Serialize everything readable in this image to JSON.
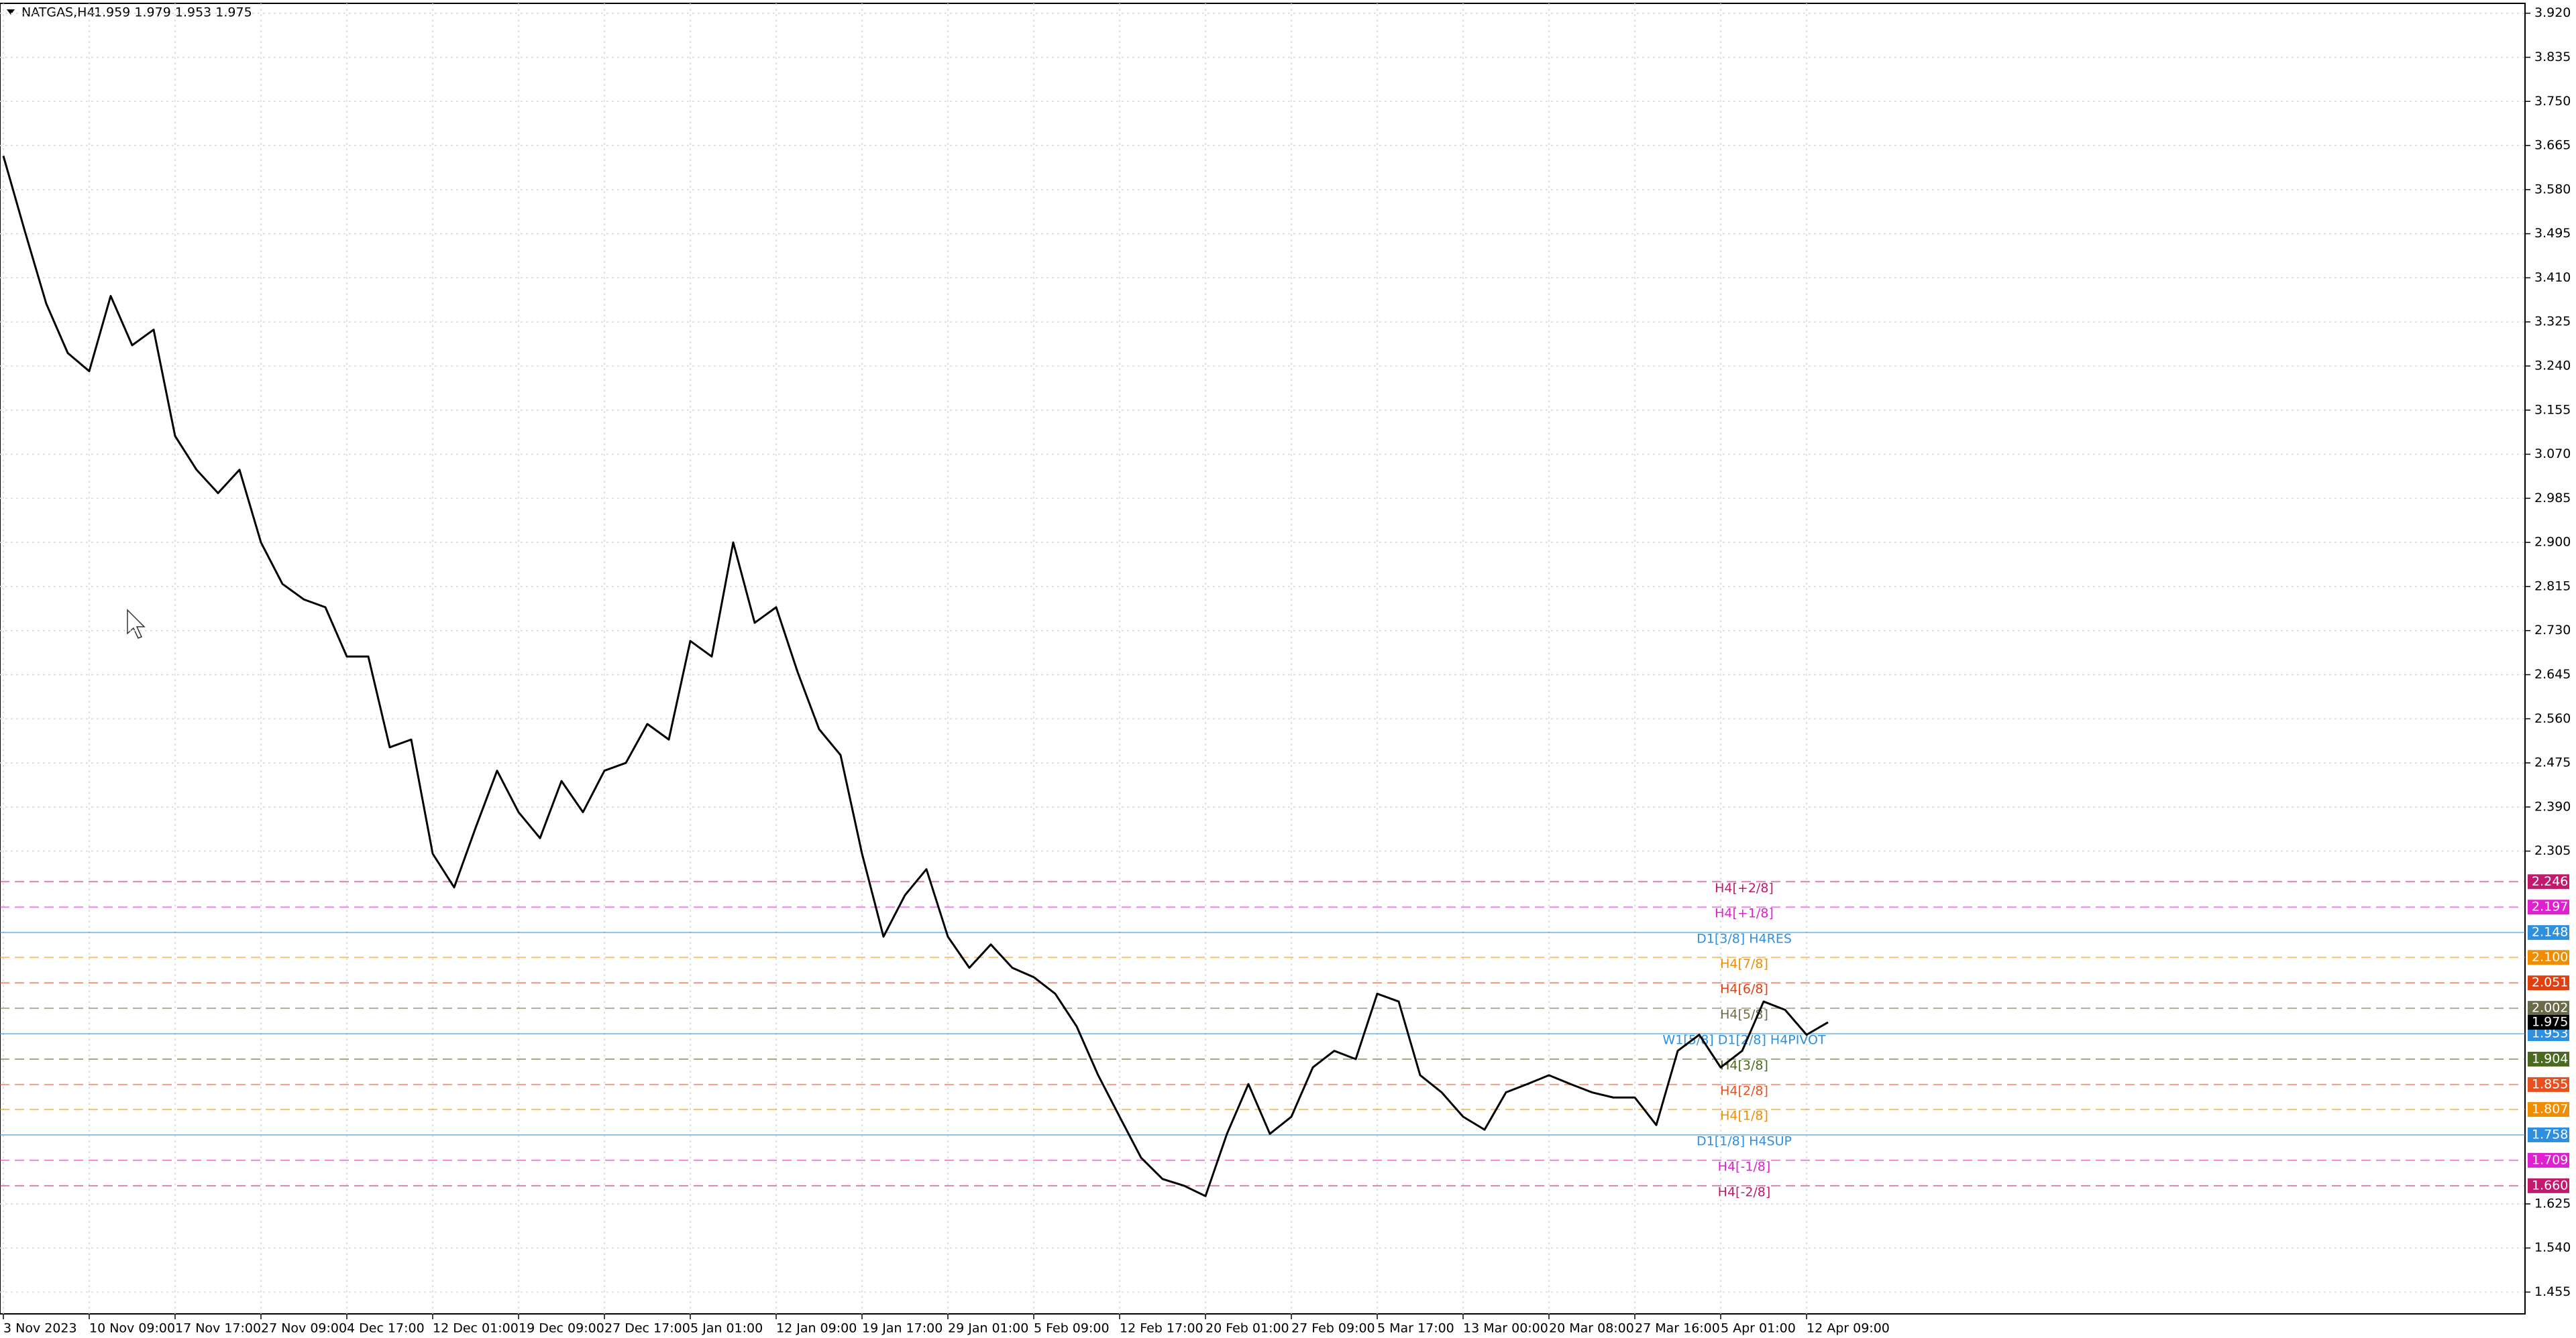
{
  "chart_data": {
    "type": "line",
    "title": "NATGAS,H4",
    "subtitle": "1.959 1.979 1.953 1.975",
    "categories": [
      "3 Nov 2023",
      null,
      null,
      null,
      "10 Nov 09:00",
      null,
      null,
      null,
      "17 Nov 17:00",
      null,
      null,
      null,
      "27 Nov 09:00",
      null,
      null,
      null,
      "4 Dec 17:00",
      null,
      null,
      null,
      "12 Dec 01:00",
      null,
      null,
      null,
      "19 Dec 09:00",
      null,
      null,
      null,
      "27 Dec 17:00",
      null,
      null,
      null,
      "5 Jan 01:00",
      null,
      null,
      null,
      "12 Jan 09:00",
      null,
      null,
      null,
      "19 Jan 17:00",
      null,
      null,
      null,
      "29 Jan 01:00",
      null,
      null,
      null,
      "5 Feb 09:00",
      null,
      null,
      null,
      "12 Feb 17:00",
      null,
      null,
      null,
      "20 Feb 01:00",
      null,
      null,
      null,
      "27 Feb 09:00",
      null,
      null,
      null,
      "5 Mar 17:00",
      null,
      null,
      null,
      "13 Mar 00:00",
      null,
      null,
      null,
      "20 Mar 08:00",
      null,
      null,
      null,
      "27 Mar 16:00",
      null,
      null,
      null,
      "5 Apr 01:00",
      null,
      null,
      null,
      "12 Apr 09:00",
      null
    ],
    "series": [
      {
        "name": "NATGAS,H4",
        "color": "#000000",
        "values": [
          3.645,
          3.5,
          3.36,
          3.265,
          3.23,
          3.375,
          3.28,
          3.31,
          3.105,
          3.04,
          2.995,
          3.04,
          2.9,
          2.82,
          2.79,
          2.775,
          2.68,
          2.68,
          2.505,
          2.52,
          2.3,
          2.235,
          2.35,
          2.46,
          2.38,
          2.33,
          2.44,
          2.38,
          2.46,
          2.475,
          2.55,
          2.52,
          2.71,
          2.68,
          2.9,
          2.745,
          2.775,
          2.65,
          2.54,
          2.49,
          2.3,
          2.14,
          2.22,
          2.27,
          2.14,
          2.08,
          2.125,
          2.08,
          2.062,
          2.03,
          1.967,
          1.873,
          1.793,
          1.714,
          1.673,
          1.66,
          1.64,
          1.76,
          1.856,
          1.76,
          1.793,
          1.888,
          1.92,
          1.904,
          2.03,
          2.015,
          1.873,
          1.84,
          1.793,
          1.768,
          1.84,
          1.856,
          1.873,
          1.856,
          1.84,
          1.83,
          1.83,
          1.777,
          1.92,
          1.951,
          1.888,
          1.92,
          2.015,
          1.999,
          1.951,
          1.975
        ]
      }
    ],
    "ylim": [
      1.413,
      3.939
    ],
    "yticks": [
      {
        "value": 3.92,
        "label": "3.920"
      },
      {
        "value": 3.835,
        "label": "3.835"
      },
      {
        "value": 3.75,
        "label": "3.750"
      },
      {
        "value": 3.665,
        "label": "3.665"
      },
      {
        "value": 3.58,
        "label": "3.580"
      },
      {
        "value": 3.495,
        "label": "3.495"
      },
      {
        "value": 3.41,
        "label": "3.410"
      },
      {
        "value": 3.325,
        "label": "3.325"
      },
      {
        "value": 3.24,
        "label": "3.240"
      },
      {
        "value": 3.155,
        "label": "3.155"
      },
      {
        "value": 3.07,
        "label": "3.070"
      },
      {
        "value": 2.985,
        "label": "2.985"
      },
      {
        "value": 2.9,
        "label": "2.900"
      },
      {
        "value": 2.815,
        "label": "2.815"
      },
      {
        "value": 2.73,
        "label": "2.730"
      },
      {
        "value": 2.645,
        "label": "2.645"
      },
      {
        "value": 2.56,
        "label": "2.560"
      },
      {
        "value": 2.475,
        "label": "2.475"
      },
      {
        "value": 2.39,
        "label": "2.390"
      },
      {
        "value": 2.305,
        "label": "2.305"
      },
      {
        "value": 1.625,
        "label": "1.625"
      },
      {
        "value": 1.54,
        "label": "1.540"
      },
      {
        "value": 1.455,
        "label": "1.455"
      }
    ],
    "grid": true,
    "levels": [
      {
        "name": "H4[+2/8]",
        "value": 2.246,
        "label": "2.246",
        "color": "#c2186e",
        "dashed": true
      },
      {
        "name": "H4[+1/8]",
        "value": 2.197,
        "label": "2.197",
        "color": "#e020d0",
        "dashed": true
      },
      {
        "name": "D1[3/8] H4RES",
        "value": 2.148,
        "label": "2.148",
        "color": "#2f8fdf",
        "dashed": false
      },
      {
        "name": "H4[7/8]",
        "value": 2.1,
        "label": "2.100",
        "color": "#f08c00",
        "dashed": true
      },
      {
        "name": "H4[6/8]",
        "value": 2.051,
        "label": "2.051",
        "color": "#e04010",
        "dashed": true
      },
      {
        "name": "H4[5/8]",
        "value": 2.002,
        "label": "2.002",
        "color": "#6b6b4a",
        "dashed": true
      },
      {
        "name": "W1[5/8] D1[2/8] H4PIVOT",
        "value": 1.953,
        "label": "1.953",
        "color": "#2f8fdf",
        "dashed": false
      },
      {
        "name": "H4[3/8]",
        "value": 1.904,
        "label": "1.904",
        "color": "#4a6a20",
        "dashed": true
      },
      {
        "name": "H4[2/8]",
        "value": 1.855,
        "label": "1.855",
        "color": "#e85020",
        "dashed": true
      },
      {
        "name": "H4[1/8]",
        "value": 1.807,
        "label": "1.807",
        "color": "#f08c00",
        "dashed": true
      },
      {
        "name": "D1[1/8] H4SUP",
        "value": 1.758,
        "label": "1.758",
        "color": "#2f8fdf",
        "dashed": false
      },
      {
        "name": "H4[-1/8]",
        "value": 1.709,
        "label": "1.709",
        "color": "#e020d0",
        "dashed": true
      },
      {
        "name": "H4[-2/8]",
        "value": 1.66,
        "label": "1.660",
        "color": "#c2186e",
        "dashed": true
      }
    ],
    "current_price": {
      "value": 1.975,
      "label": "1.975",
      "color": "#000000"
    }
  }
}
